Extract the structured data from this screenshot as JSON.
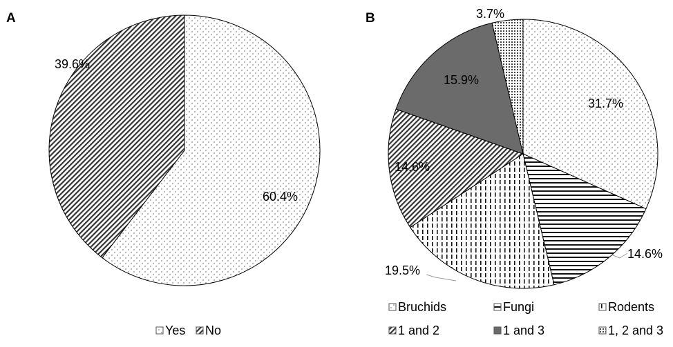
{
  "chart_data": [
    {
      "panel": "A",
      "type": "pie",
      "slices": [
        {
          "label": "Yes",
          "value": 60.4,
          "value_label": "60.4%",
          "pattern": "dots"
        },
        {
          "label": "No",
          "value": 39.6,
          "value_label": "39.6%",
          "pattern": "diag"
        }
      ],
      "legend_placement": "bottom"
    },
    {
      "panel": "B",
      "type": "pie",
      "slices": [
        {
          "label": "Bruchids",
          "value": 31.7,
          "value_label": "31.7%",
          "pattern": "dots"
        },
        {
          "label": "Fungi",
          "value": 14.6,
          "value_label": "14.6%",
          "pattern": "hlines"
        },
        {
          "label": "Rodents",
          "value": 19.5,
          "value_label": "19.5%",
          "pattern": "vdash"
        },
        {
          "label": "1 and 2",
          "value": 14.6,
          "value_label": "14.6%",
          "pattern": "diag"
        },
        {
          "label": "1 and 3",
          "value": 15.9,
          "value_label": "15.9%",
          "pattern": "solid"
        },
        {
          "label": "1, 2 and 3",
          "value": 3.7,
          "value_label": "3.7%",
          "pattern": "dense"
        }
      ],
      "legend_placement": "bottom"
    }
  ],
  "colors": {
    "solid": "#6b6b6b",
    "line": "#000000",
    "leader": "#9a9a9a"
  }
}
